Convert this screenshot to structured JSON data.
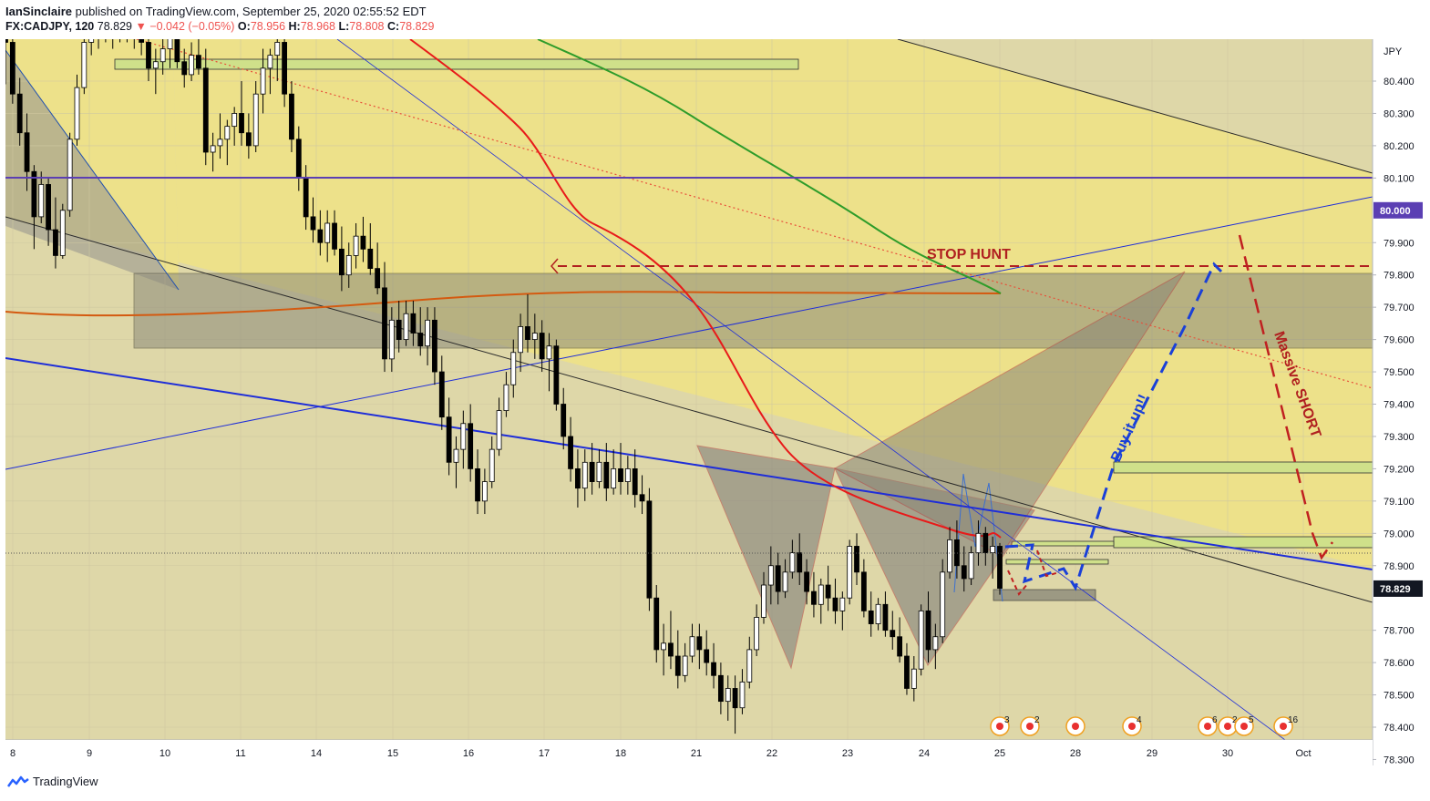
{
  "header": {
    "author": "IanSinclaire",
    "published": "published on TradingView.com, September 25, 2020 02:55:52 EDT",
    "symbol": "FX:CADJPY, 120",
    "last": "78.829",
    "change": "▼ −0.042 (−0.05%)",
    "ohlc": [
      {
        "k": "O:",
        "v": "78.956"
      },
      {
        "k": "H:",
        "v": "78.968"
      },
      {
        "k": "L:",
        "v": "78.808"
      },
      {
        "k": "C:",
        "v": "78.829"
      }
    ]
  },
  "footer": {
    "brand": "TradingView"
  },
  "colors": {
    "bg_zone": "#ded7a8",
    "bg_upper": "#ede18a",
    "up": "#ffffff",
    "down": "#000000",
    "ema_red": "#e81a1a",
    "ema_green": "#2e9c2a",
    "ema_orange": "#d45a10",
    "trend_blue": "#1f2ed8",
    "purple": "#5b3fb3",
    "annot_red": "#b02020",
    "buy_blue": "#1a40d8",
    "zone_green": "#cfe08a"
  },
  "annotations": {
    "stop_hunt": "STOP HUNT",
    "buy_it_up": "Buy it up!!",
    "massive_short": "Massive SHORT"
  },
  "chart_data": {
    "type": "candlestick",
    "currency": "JPY",
    "ylim": [
      78.24,
      80.56
    ],
    "y_ticks": [
      "80.400",
      "80.300",
      "80.200",
      "80.100",
      "79.900",
      "79.800",
      "79.700",
      "79.600",
      "79.500",
      "79.400",
      "79.300",
      "79.200",
      "79.100",
      "79.000",
      "78.900",
      "78.700",
      "78.600",
      "78.500",
      "78.400",
      "78.300"
    ],
    "price_tags": [
      {
        "label": "80.000",
        "value": 80.0,
        "color": "#5b3fb3"
      },
      {
        "label": "78.829",
        "value": 78.829,
        "color": "#131722"
      }
    ],
    "x_labels": [
      "8",
      "9",
      "10",
      "11",
      "14",
      "15",
      "16",
      "17",
      "18",
      "21",
      "22",
      "23",
      "24",
      "25",
      "28",
      "29",
      "30",
      "Oct"
    ],
    "key_levels": {
      "round_number": 80.0,
      "stop_hunt": 79.725,
      "resistance_zone": [
        79.47,
        79.7
      ],
      "last_price": 78.829
    },
    "event_badges": [
      "3",
      "2",
      "",
      "4",
      "6",
      "2",
      "5",
      "16"
    ],
    "candles": [
      [
        80.71,
        80.76,
        80.39,
        80.52
      ],
      [
        80.52,
        80.56,
        80.33,
        80.36
      ],
      [
        80.36,
        80.41,
        80.2,
        80.24
      ],
      [
        80.24,
        80.3,
        80.06,
        80.12
      ],
      [
        80.12,
        80.14,
        79.88,
        79.98
      ],
      [
        79.98,
        80.12,
        79.96,
        80.08
      ],
      [
        80.08,
        80.1,
        79.89,
        79.94
      ],
      [
        79.94,
        80.04,
        79.82,
        79.86
      ],
      [
        79.86,
        80.02,
        79.85,
        80.0
      ],
      [
        80.0,
        80.24,
        79.98,
        80.22
      ],
      [
        80.22,
        80.42,
        80.2,
        80.38
      ],
      [
        80.38,
        80.56,
        80.36,
        80.52
      ],
      [
        80.52,
        80.62,
        80.48,
        80.58
      ],
      [
        80.58,
        80.6,
        80.5,
        80.54
      ],
      [
        80.54,
        80.65,
        80.52,
        80.6
      ],
      [
        80.6,
        80.62,
        80.5,
        80.54
      ],
      [
        80.54,
        80.64,
        80.52,
        80.6
      ],
      [
        80.6,
        80.62,
        80.52,
        80.56
      ],
      [
        80.56,
        80.66,
        80.5,
        80.6
      ],
      [
        80.6,
        80.62,
        80.48,
        80.52
      ],
      [
        80.52,
        80.58,
        80.4,
        80.44
      ],
      [
        80.44,
        80.5,
        80.36,
        80.46
      ],
      [
        80.46,
        80.55,
        80.42,
        80.5
      ],
      [
        80.5,
        80.6,
        80.44,
        80.56
      ],
      [
        80.56,
        80.6,
        80.44,
        80.46
      ],
      [
        80.46,
        80.5,
        80.38,
        80.42
      ],
      [
        80.42,
        80.52,
        80.4,
        80.48
      ],
      [
        80.48,
        80.55,
        80.42,
        80.44
      ],
      [
        80.44,
        80.5,
        80.14,
        80.18
      ],
      [
        80.18,
        80.24,
        80.12,
        80.2
      ],
      [
        80.2,
        80.3,
        80.16,
        80.22
      ],
      [
        80.22,
        80.28,
        80.14,
        80.26
      ],
      [
        80.26,
        80.32,
        80.2,
        80.3
      ],
      [
        80.3,
        80.4,
        80.2,
        80.24
      ],
      [
        80.24,
        80.3,
        80.16,
        80.2
      ],
      [
        80.2,
        80.4,
        80.18,
        80.36
      ],
      [
        80.36,
        80.5,
        80.3,
        80.44
      ],
      [
        80.44,
        80.5,
        80.36,
        80.48
      ],
      [
        80.48,
        80.56,
        80.4,
        80.52
      ],
      [
        80.52,
        80.56,
        80.32,
        80.36
      ],
      [
        80.36,
        80.4,
        80.18,
        80.22
      ],
      [
        80.22,
        80.26,
        80.06,
        80.1
      ],
      [
        80.1,
        80.14,
        79.94,
        79.98
      ],
      [
        79.98,
        80.04,
        79.9,
        79.94
      ],
      [
        79.94,
        80.0,
        79.86,
        79.9
      ],
      [
        79.9,
        80.0,
        79.84,
        79.96
      ],
      [
        79.96,
        80.0,
        79.86,
        79.88
      ],
      [
        79.88,
        79.95,
        79.75,
        79.8
      ],
      [
        79.8,
        79.9,
        79.76,
        79.86
      ],
      [
        79.86,
        79.96,
        79.82,
        79.92
      ],
      [
        79.92,
        79.98,
        79.84,
        79.88
      ],
      [
        79.88,
        79.96,
        79.8,
        79.82
      ],
      [
        79.82,
        79.9,
        79.74,
        79.76
      ],
      [
        79.76,
        79.84,
        79.5,
        79.54
      ],
      [
        79.54,
        79.7,
        79.5,
        79.66
      ],
      [
        79.66,
        79.72,
        79.56,
        79.6
      ],
      [
        79.6,
        79.72,
        79.58,
        79.68
      ],
      [
        79.68,
        79.72,
        79.58,
        79.62
      ],
      [
        79.62,
        79.7,
        79.55,
        79.58
      ],
      [
        79.58,
        79.7,
        79.52,
        79.66
      ],
      [
        79.66,
        79.7,
        79.46,
        79.5
      ],
      [
        79.5,
        79.55,
        79.32,
        79.36
      ],
      [
        79.36,
        79.42,
        79.18,
        79.22
      ],
      [
        79.22,
        79.3,
        79.14,
        79.26
      ],
      [
        79.26,
        79.38,
        79.2,
        79.34
      ],
      [
        79.34,
        79.4,
        79.16,
        79.2
      ],
      [
        79.2,
        79.26,
        79.06,
        79.1
      ],
      [
        79.1,
        79.2,
        79.06,
        79.16
      ],
      [
        79.16,
        79.3,
        79.14,
        79.26
      ],
      [
        79.26,
        79.42,
        79.24,
        79.38
      ],
      [
        79.38,
        79.5,
        79.36,
        79.46
      ],
      [
        79.46,
        79.6,
        79.42,
        79.56
      ],
      [
        79.56,
        79.68,
        79.5,
        79.64
      ],
      [
        79.64,
        79.74,
        79.56,
        79.6
      ],
      [
        79.6,
        79.68,
        79.54,
        79.62
      ],
      [
        79.62,
        79.66,
        79.5,
        79.54
      ],
      [
        79.54,
        79.62,
        79.44,
        79.58
      ],
      [
        79.58,
        79.6,
        79.38,
        79.4
      ],
      [
        79.4,
        79.45,
        79.26,
        79.3
      ],
      [
        79.3,
        79.36,
        79.16,
        79.2
      ],
      [
        79.2,
        79.26,
        79.08,
        79.14
      ],
      [
        79.14,
        79.26,
        79.1,
        79.22
      ],
      [
        79.22,
        79.28,
        79.12,
        79.16
      ],
      [
        79.16,
        79.26,
        79.14,
        79.22
      ],
      [
        79.22,
        79.28,
        79.1,
        79.14
      ],
      [
        79.14,
        79.26,
        79.12,
        79.2
      ],
      [
        79.2,
        79.28,
        79.12,
        79.16
      ],
      [
        79.16,
        79.24,
        79.12,
        79.2
      ],
      [
        79.2,
        79.26,
        79.08,
        79.12
      ],
      [
        79.12,
        79.18,
        79.06,
        79.1
      ],
      [
        79.1,
        79.14,
        78.76,
        78.8
      ],
      [
        78.8,
        78.84,
        78.6,
        78.64
      ],
      [
        78.64,
        78.72,
        78.56,
        78.66
      ],
      [
        78.66,
        78.76,
        78.58,
        78.62
      ],
      [
        78.62,
        78.7,
        78.52,
        78.56
      ],
      [
        78.56,
        78.66,
        78.54,
        78.62
      ],
      [
        78.62,
        78.72,
        78.6,
        78.68
      ],
      [
        78.68,
        78.72,
        78.58,
        78.64
      ],
      [
        78.64,
        78.7,
        78.56,
        78.6
      ],
      [
        78.6,
        78.66,
        78.52,
        78.56
      ],
      [
        78.56,
        78.6,
        78.44,
        78.48
      ],
      [
        78.48,
        78.56,
        78.42,
        78.52
      ],
      [
        78.52,
        78.56,
        78.38,
        78.46
      ],
      [
        78.46,
        78.58,
        78.44,
        78.54
      ],
      [
        78.54,
        78.68,
        78.52,
        78.64
      ],
      [
        78.64,
        78.78,
        78.62,
        78.74
      ],
      [
        78.74,
        78.88,
        78.72,
        78.84
      ],
      [
        78.84,
        78.96,
        78.78,
        78.9
      ],
      [
        78.9,
        78.94,
        78.78,
        78.82
      ],
      [
        78.82,
        78.92,
        78.8,
        78.88
      ],
      [
        78.88,
        78.98,
        78.86,
        78.94
      ],
      [
        78.94,
        79.0,
        78.84,
        78.88
      ],
      [
        78.88,
        78.92,
        78.78,
        78.82
      ],
      [
        78.82,
        78.88,
        78.74,
        78.78
      ],
      [
        78.78,
        78.86,
        78.72,
        78.84
      ],
      [
        78.84,
        78.9,
        78.76,
        78.8
      ],
      [
        78.8,
        78.86,
        78.72,
        78.76
      ],
      [
        78.76,
        78.82,
        78.7,
        78.8
      ],
      [
        78.8,
        78.98,
        78.78,
        78.96
      ],
      [
        78.96,
        79.0,
        78.84,
        78.88
      ],
      [
        78.88,
        78.92,
        78.74,
        78.76
      ],
      [
        78.76,
        78.82,
        78.68,
        78.72
      ],
      [
        78.72,
        78.8,
        78.7,
        78.78
      ],
      [
        78.78,
        78.82,
        78.68,
        78.7
      ],
      [
        78.7,
        78.76,
        78.64,
        78.68
      ],
      [
        78.68,
        78.74,
        78.6,
        78.62
      ],
      [
        78.62,
        78.66,
        78.5,
        78.52
      ],
      [
        78.52,
        78.62,
        78.48,
        78.58
      ],
      [
        78.58,
        78.78,
        78.56,
        78.76
      ],
      [
        78.76,
        78.82,
        78.6,
        78.64
      ],
      [
        78.64,
        78.72,
        78.58,
        78.68
      ],
      [
        78.68,
        78.92,
        78.66,
        78.88
      ],
      [
        78.88,
        79.02,
        78.86,
        78.98
      ],
      [
        78.98,
        79.04,
        78.86,
        78.9
      ],
      [
        78.9,
        78.96,
        78.82,
        78.86
      ],
      [
        78.86,
        78.96,
        78.84,
        78.94
      ],
      [
        78.94,
        79.04,
        78.9,
        79.0
      ],
      [
        79.0,
        79.02,
        78.9,
        78.94
      ],
      [
        78.94,
        78.99,
        78.86,
        78.96
      ],
      [
        78.96,
        78.97,
        78.81,
        78.83
      ]
    ]
  }
}
